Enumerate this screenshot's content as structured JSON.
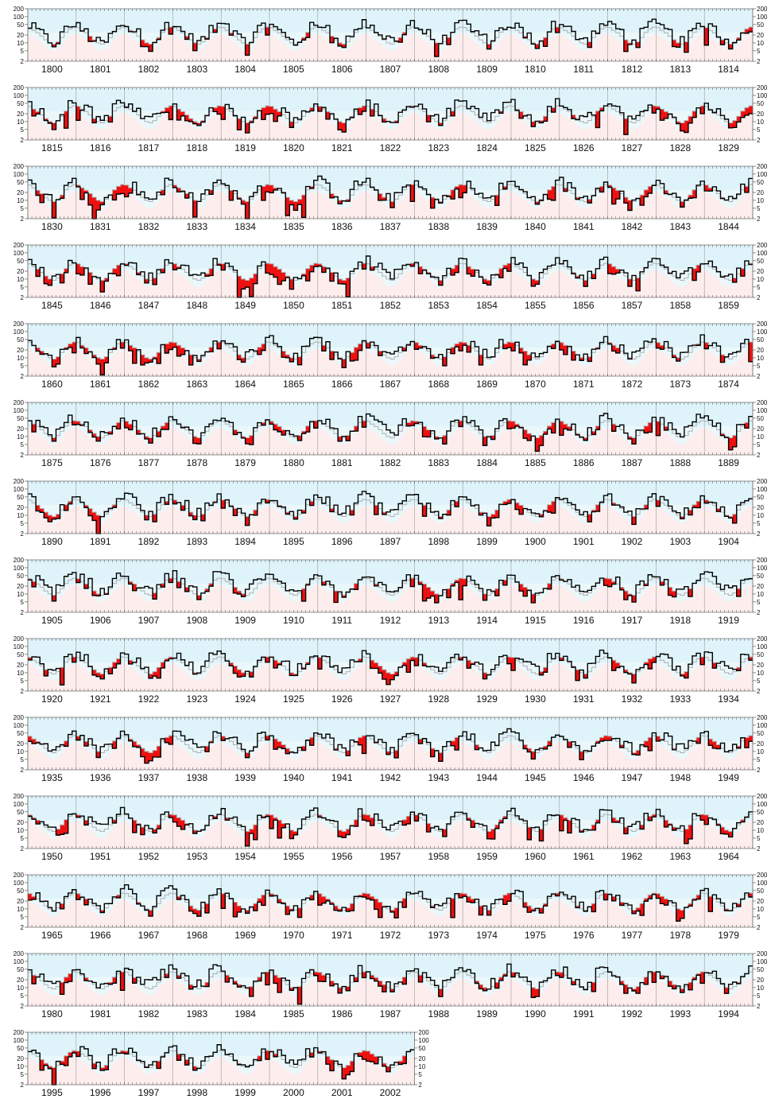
{
  "chart_data": {
    "type": "line",
    "title": "",
    "xlabel": "",
    "ylabel": "",
    "y_scale": "log",
    "ylim": [
      2,
      200
    ],
    "y_ticks": [
      "200",
      "100",
      "50",
      "20",
      "10",
      "5",
      "2"
    ],
    "years_per_row": 15,
    "rows": [
      {
        "years": [
          1800,
          1801,
          1802,
          1803,
          1804,
          1805,
          1806,
          1807,
          1808,
          1809,
          1810,
          1811,
          1812,
          1813,
          1814
        ]
      },
      {
        "years": [
          1815,
          1816,
          1817,
          1818,
          1819,
          1820,
          1821,
          1822,
          1823,
          1824,
          1825,
          1826,
          1827,
          1828,
          1829
        ]
      },
      {
        "years": [
          1830,
          1831,
          1832,
          1833,
          1834,
          1835,
          1836,
          1837,
          1838,
          1839,
          1840,
          1841,
          1842,
          1843,
          1844
        ]
      },
      {
        "years": [
          1845,
          1846,
          1847,
          1848,
          1849,
          1850,
          1851,
          1852,
          1853,
          1854,
          1855,
          1856,
          1857,
          1858,
          1859
        ]
      },
      {
        "years": [
          1860,
          1861,
          1862,
          1863,
          1864,
          1865,
          1866,
          1867,
          1868,
          1869,
          1870,
          1871,
          1872,
          1873,
          1874
        ]
      },
      {
        "years": [
          1875,
          1876,
          1877,
          1878,
          1879,
          1880,
          1881,
          1882,
          1883,
          1884,
          1885,
          1886,
          1887,
          1888,
          1889
        ]
      },
      {
        "years": [
          1890,
          1891,
          1892,
          1893,
          1894,
          1895,
          1896,
          1897,
          1898,
          1899,
          1900,
          1901,
          1902,
          1903,
          1904
        ]
      },
      {
        "years": [
          1905,
          1906,
          1907,
          1908,
          1909,
          1910,
          1911,
          1912,
          1913,
          1914,
          1915,
          1916,
          1917,
          1918,
          1919
        ]
      },
      {
        "years": [
          1920,
          1921,
          1922,
          1923,
          1924,
          1925,
          1926,
          1927,
          1928,
          1929,
          1930,
          1931,
          1932,
          1933,
          1934
        ]
      },
      {
        "years": [
          1935,
          1936,
          1937,
          1938,
          1939,
          1940,
          1941,
          1942,
          1943,
          1944,
          1945,
          1946,
          1947,
          1948,
          1949
        ]
      },
      {
        "years": [
          1950,
          1951,
          1952,
          1953,
          1954,
          1955,
          1956,
          1957,
          1958,
          1959,
          1960,
          1961,
          1962,
          1963,
          1964
        ]
      },
      {
        "years": [
          1965,
          1966,
          1967,
          1968,
          1969,
          1970,
          1971,
          1972,
          1973,
          1974,
          1975,
          1976,
          1977,
          1978,
          1979
        ]
      },
      {
        "years": [
          1980,
          1981,
          1982,
          1983,
          1984,
          1985,
          1986,
          1987,
          1988,
          1989,
          1990,
          1991,
          1992,
          1993,
          1994
        ]
      },
      {
        "years": [
          1995,
          1996,
          1997,
          1998,
          1999,
          2000,
          2001,
          2002
        ]
      }
    ],
    "series": [
      {
        "key": "monthly",
        "color": "#000000"
      },
      {
        "key": "climatology",
        "color": "#b0b0b0"
      }
    ],
    "deficit_fill_color": "#ee1111",
    "above_band_color": "#dff4fa",
    "below_band_color": "#fde3e3",
    "grid": true,
    "legend": "none",
    "climatology_monthly": [
      38,
      30,
      24,
      18,
      13,
      10,
      9,
      11,
      16,
      25,
      34,
      40
    ]
  }
}
